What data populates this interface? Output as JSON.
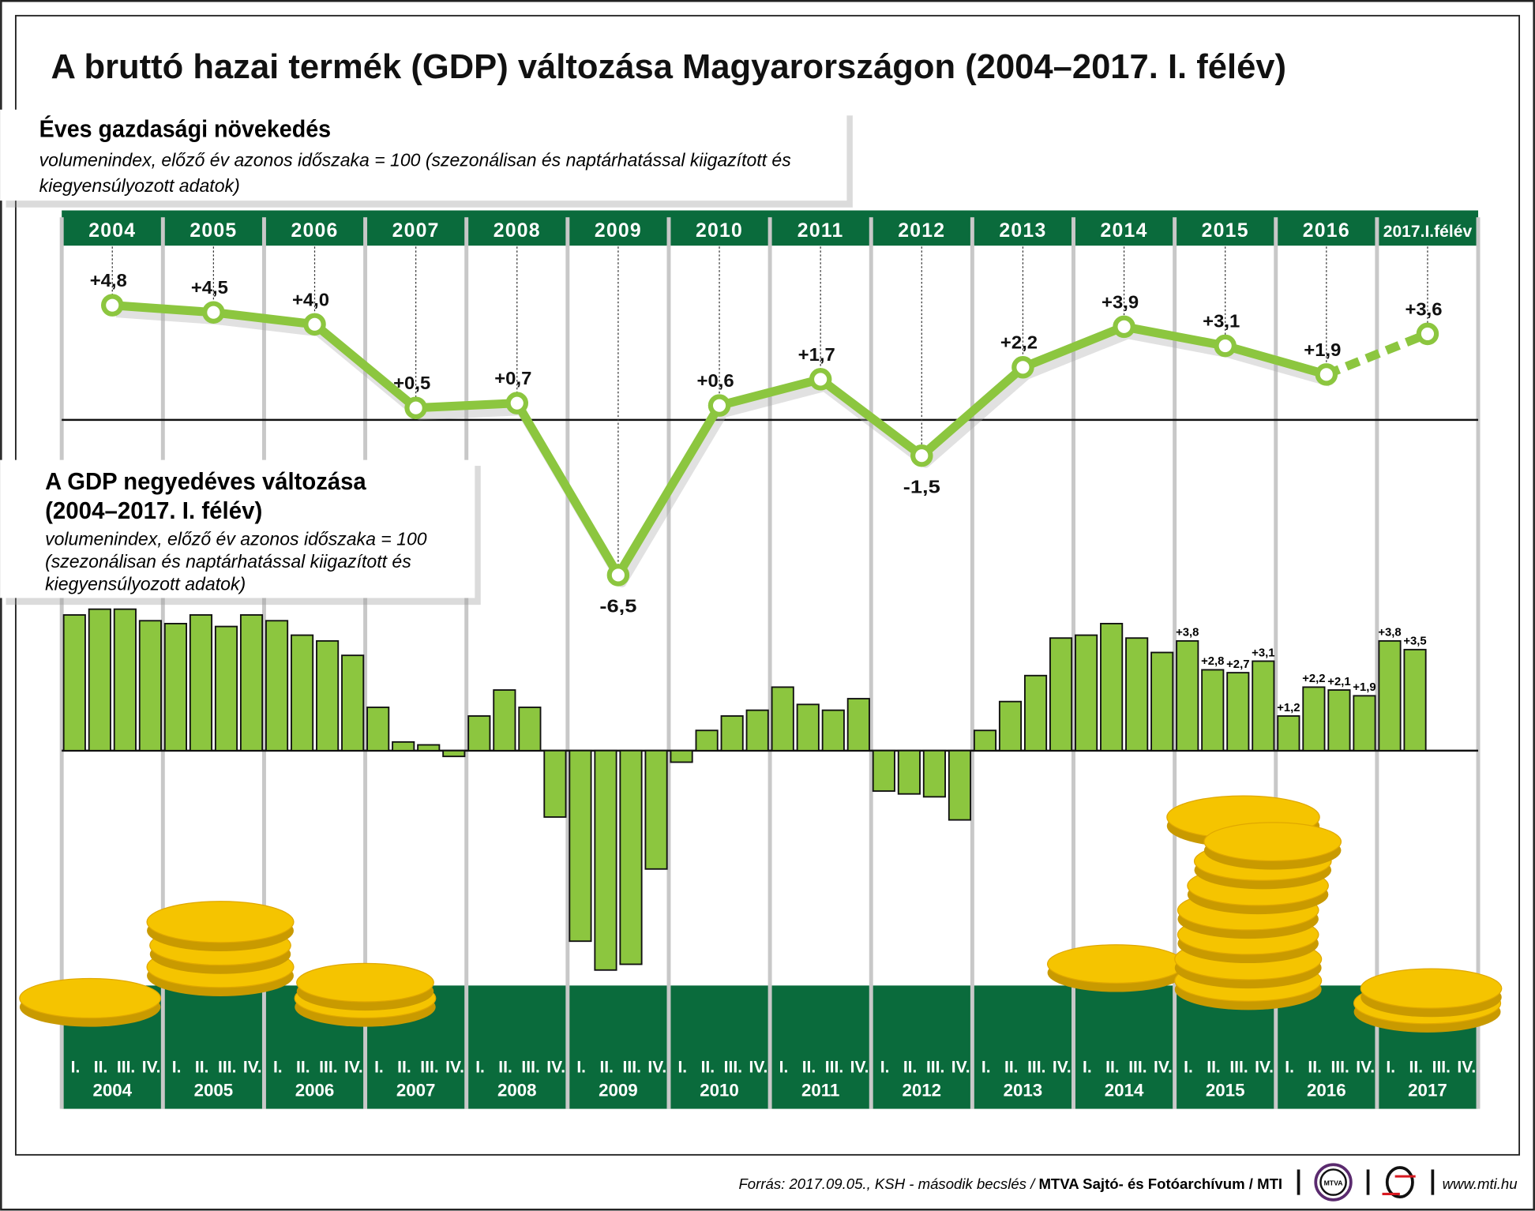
{
  "title": "A bruttó hazai termék (GDP) változása Magyarországon (2004–2017. I. félév)",
  "annual_box": {
    "heading": "Éves gazdasági növekedés",
    "sub1": "volumenindex, előző év azonos időszaka = 100 (szezonálisan és naptárhatással kiigazított és",
    "sub2": "kiegyensúlyozott adatok)"
  },
  "quarter_box": {
    "heading1": "A GDP negyedéves változása",
    "heading2": "(2004–2017. I. félév)",
    "sub1": "volumenindex, előző év azonos időszaka = 100",
    "sub2": "(szezonálisan és naptárhatással kiigazított és",
    "sub3": "kiegyensúlyozott adatok)"
  },
  "colors": {
    "green_dark": "#0a6b3c",
    "green_bar": "#8cc63f",
    "line": "#8cc63f",
    "separator": "#c8c8c8",
    "coin": "#f5c400"
  },
  "chart_data": [
    {
      "type": "line",
      "categories": [
        "2004",
        "2005",
        "2006",
        "2007",
        "2008",
        "2009",
        "2010",
        "2011",
        "2012",
        "2013",
        "2014",
        "2015",
        "2016",
        "2017.I.félév"
      ],
      "values": [
        4.8,
        4.5,
        4.0,
        0.5,
        0.7,
        -6.5,
        0.6,
        1.7,
        -1.5,
        2.2,
        3.9,
        3.1,
        1.9,
        3.6
      ],
      "labels": [
        "+4,8",
        "+4,5",
        "+4,0",
        "+0,5",
        "+0,7",
        "-6,5",
        "+0,6",
        "+1,7",
        "-1,5",
        "+2,2",
        "+3,9",
        "+3,1",
        "+1,9",
        "+3,6"
      ],
      "dashed_last_segment": true,
      "baseline": 0
    },
    {
      "type": "bar",
      "years": [
        "2004",
        "2005",
        "2006",
        "2007",
        "2008",
        "2009",
        "2010",
        "2011",
        "2012",
        "2013",
        "2014",
        "2015",
        "2016",
        "2017"
      ],
      "quarter_labels": [
        "I.",
        "II.",
        "III.",
        "IV."
      ],
      "values": [
        [
          4.7,
          4.9,
          4.9,
          4.5
        ],
        [
          4.4,
          4.7,
          4.3,
          4.7
        ],
        [
          4.5,
          4.0,
          3.8,
          3.3
        ],
        [
          1.5,
          0.3,
          0.2,
          -0.2
        ],
        [
          1.2,
          2.1,
          1.5,
          -2.3
        ],
        [
          -6.6,
          -7.6,
          -7.4,
          -4.1
        ],
        [
          -0.4,
          0.7,
          1.2,
          1.4
        ],
        [
          2.2,
          1.6,
          1.4,
          1.8
        ],
        [
          -1.4,
          -1.5,
          -1.6,
          -2.4
        ],
        [
          0.7,
          1.7,
          2.6,
          3.9
        ],
        [
          4.0,
          4.4,
          3.9,
          3.4
        ],
        [
          3.8,
          2.8,
          2.7,
          3.1
        ],
        [
          1.2,
          2.2,
          2.1,
          1.9
        ],
        [
          3.8,
          3.5
        ]
      ],
      "data_labels": {
        "2015": [
          "+3,8",
          "+2,8",
          "+2,7",
          "+3,1"
        ],
        "2016": [
          "+1,2",
          "+2,2",
          "+2,1",
          "+1,9"
        ],
        "2017": [
          "+3,8",
          "+3,5"
        ]
      },
      "baseline": 0
    }
  ],
  "footer": {
    "source": "Forrás: 2017.09.05., KSH - második becslés / ",
    "agency": "MTVA Sajtó- és Fotóarchívum / MTI",
    "logo1": "MTVA",
    "url": "www.mti.hu"
  }
}
